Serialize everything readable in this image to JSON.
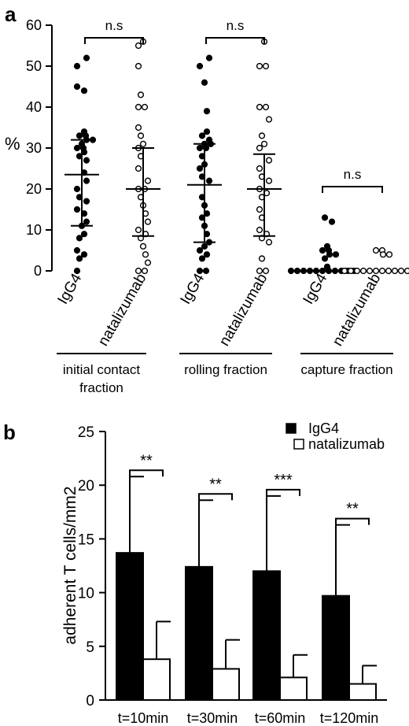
{
  "chart_data": [
    {
      "panel_label": "a",
      "type": "scatter",
      "ylabel": "%",
      "ylim": [
        0,
        60
      ],
      "yticks": [
        0,
        10,
        20,
        30,
        40,
        50,
        60
      ],
      "groups": [
        {
          "name": "initial contact fraction",
          "title_lines": [
            "initial contact",
            "fraction"
          ],
          "significance": "n.s"
        },
        {
          "name": "rolling fraction",
          "title_lines": [
            "rolling fraction"
          ],
          "significance": "n.s"
        },
        {
          "name": "capture fraction",
          "title_lines": [
            "capture fraction"
          ],
          "significance": "n.s"
        }
      ],
      "series": [
        {
          "name": "IgG4",
          "marker": "filled",
          "group": 0,
          "values": [
            52,
            50,
            45,
            44,
            34,
            33,
            33,
            32,
            32,
            31,
            30,
            30,
            29,
            28,
            27,
            24,
            22,
            20,
            18,
            17,
            15,
            14,
            12,
            11,
            9,
            8,
            5,
            4,
            3,
            0
          ],
          "mean": 23.5,
          "sd_low": 11,
          "sd_high": 32
        },
        {
          "name": "natalizumab",
          "marker": "open",
          "group": 0,
          "values": [
            56,
            55,
            50,
            43,
            40,
            40,
            35,
            33,
            31,
            30,
            28,
            25,
            22,
            20,
            20,
            18,
            16,
            14,
            12,
            10,
            9,
            8,
            6,
            4,
            2,
            0,
            0
          ],
          "mean": 20,
          "sd_low": 8.5,
          "sd_high": 30
        },
        {
          "name": "IgG4",
          "marker": "filled",
          "group": 1,
          "values": [
            52,
            50,
            46,
            39,
            34,
            33,
            32,
            31,
            31,
            30,
            30,
            28,
            26,
            25,
            23,
            22,
            18,
            16,
            14,
            13,
            11,
            9,
            7,
            6,
            5,
            4,
            3,
            0,
            0
          ],
          "mean": 21,
          "sd_low": 7,
          "sd_high": 31
        },
        {
          "name": "natalizumab",
          "marker": "open",
          "group": 1,
          "values": [
            56,
            50,
            50,
            40,
            40,
            37,
            33,
            31,
            30,
            27,
            25,
            23,
            22,
            20,
            19,
            18,
            15,
            13,
            10,
            9,
            8,
            7,
            3,
            0,
            0
          ],
          "mean": 20,
          "sd_low": 8.5,
          "sd_high": 28.5
        },
        {
          "name": "IgG4",
          "marker": "filled",
          "group": 2,
          "values": [
            13,
            12,
            6,
            5,
            5,
            4,
            4,
            3,
            1,
            0,
            0,
            0,
            0,
            0,
            0,
            0,
            0,
            0,
            0,
            0
          ],
          "mean": null,
          "sd_low": null,
          "sd_high": null
        },
        {
          "name": "natalizumab",
          "marker": "open",
          "group": 2,
          "values": [
            5,
            5,
            4,
            4,
            0,
            0,
            0,
            0,
            0,
            0,
            0,
            0,
            0,
            0,
            0,
            0
          ],
          "mean": null,
          "sd_low": null,
          "sd_high": null
        }
      ]
    },
    {
      "panel_label": "b",
      "type": "bar",
      "ylabel": "adherent T cells/mm2",
      "ylim": [
        0,
        25
      ],
      "yticks": [
        0,
        5,
        10,
        15,
        20,
        25
      ],
      "categories": [
        "t=10min",
        "t=30min",
        "t=60min",
        "t=120min"
      ],
      "series": [
        {
          "name": "IgG4",
          "color": "#000000",
          "values": [
            13.7,
            12.4,
            12.0,
            9.7
          ],
          "error_high": [
            20.8,
            18.6,
            19.0,
            16.3
          ]
        },
        {
          "name": "natalizumab",
          "color": "#ffffff",
          "values": [
            3.8,
            2.9,
            2.1,
            1.5
          ],
          "error_high": [
            7.3,
            5.6,
            4.2,
            3.2
          ]
        }
      ],
      "significance": [
        "**",
        "**",
        "***",
        "**"
      ],
      "legend": "top-right"
    }
  ]
}
